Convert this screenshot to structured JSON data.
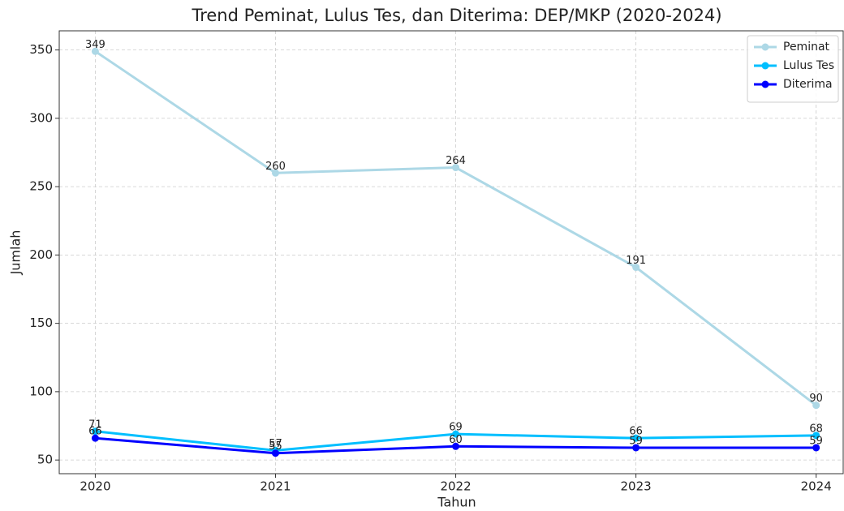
{
  "chart_data": {
    "type": "line",
    "title": "Trend Peminat, Lulus Tes, dan Diterima: DEP/MKP (2020-2024)",
    "xlabel": "Tahun",
    "ylabel": "Jumlah",
    "x": [
      2020,
      2021,
      2022,
      2023,
      2024
    ],
    "series": [
      {
        "name": "Peminat",
        "color": "#add8e6",
        "values": [
          349,
          260,
          264,
          191,
          90
        ]
      },
      {
        "name": "Lulus Tes",
        "color": "#00bfff",
        "values": [
          71,
          57,
          69,
          66,
          68
        ]
      },
      {
        "name": "Diterima",
        "color": "#0000ff",
        "values": [
          66,
          55,
          60,
          59,
          59
        ]
      }
    ],
    "xlim": [
      2019.8,
      2024.15
    ],
    "xticks": [
      2020,
      2021,
      2022,
      2023,
      2024
    ],
    "ylim": [
      40,
      364
    ],
    "yticks": [
      50,
      100,
      150,
      200,
      250,
      300,
      350
    ],
    "grid": true,
    "legend": "upper right"
  }
}
